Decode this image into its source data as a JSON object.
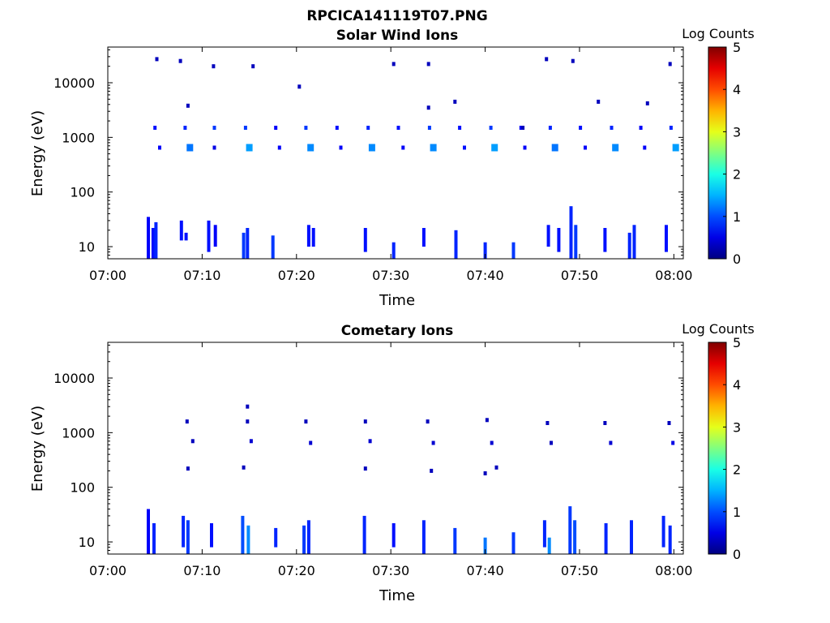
{
  "figure": {
    "title": "RPCICA141119T07.PNG"
  },
  "chart_data": [
    {
      "type": "heatmap",
      "title": "Solar Wind Ions",
      "xlabel": "Time",
      "ylabel": "Energy (eV)",
      "xlim": [
        "07:00",
        "08:01"
      ],
      "ylim": [
        6,
        45000
      ],
      "yscale": "log",
      "xticks": [
        "07:00",
        "07:10",
        "07:20",
        "07:30",
        "07:40",
        "07:50",
        "08:00"
      ],
      "yticks": [
        "10",
        "100",
        "1000",
        "10000"
      ],
      "colorbar": {
        "label": "Log Counts",
        "min": 0,
        "max": 5,
        "ticks": [
          "0",
          "1",
          "2",
          "3",
          "4",
          "5"
        ],
        "colormap": "jet"
      },
      "beam_times_min": [
        5.0,
        8.2,
        11.3,
        14.6,
        17.8,
        21.0,
        24.3,
        27.6,
        30.8,
        34.1,
        37.3,
        40.6,
        43.8,
        46.9,
        50.1,
        53.4,
        56.5,
        59.7
      ],
      "beam_energies_ev": [
        1500,
        650
      ],
      "cells": [
        {
          "t": 5.0,
          "e": 1500,
          "v": 0.7
        },
        {
          "t": 5.5,
          "e": 650,
          "v": 0.6
        },
        {
          "t": 8.2,
          "e": 1500,
          "v": 0.8
        },
        {
          "t": 8.7,
          "e": 650,
          "v": 1.2
        },
        {
          "t": 11.3,
          "e": 1500,
          "v": 0.9
        },
        {
          "t": 11.3,
          "e": 650,
          "v": 0.5
        },
        {
          "t": 14.6,
          "e": 1500,
          "v": 0.9
        },
        {
          "t": 15.0,
          "e": 650,
          "v": 1.4
        },
        {
          "t": 17.8,
          "e": 1500,
          "v": 0.6
        },
        {
          "t": 18.2,
          "e": 650,
          "v": 0.6
        },
        {
          "t": 21.0,
          "e": 1500,
          "v": 0.9
        },
        {
          "t": 21.5,
          "e": 650,
          "v": 1.3
        },
        {
          "t": 24.3,
          "e": 1500,
          "v": 0.7
        },
        {
          "t": 24.7,
          "e": 650,
          "v": 0.6
        },
        {
          "t": 27.6,
          "e": 1500,
          "v": 0.8
        },
        {
          "t": 28.0,
          "e": 650,
          "v": 1.3
        },
        {
          "t": 30.8,
          "e": 1500,
          "v": 0.7
        },
        {
          "t": 31.3,
          "e": 650,
          "v": 0.6
        },
        {
          "t": 34.1,
          "e": 1500,
          "v": 0.9
        },
        {
          "t": 34.5,
          "e": 650,
          "v": 1.3
        },
        {
          "t": 37.3,
          "e": 1500,
          "v": 0.7
        },
        {
          "t": 37.8,
          "e": 650,
          "v": 0.7
        },
        {
          "t": 40.6,
          "e": 1500,
          "v": 0.9
        },
        {
          "t": 41.0,
          "e": 650,
          "v": 1.4
        },
        {
          "t": 43.8,
          "e": 1500,
          "v": 0.6
        },
        {
          "t": 44.2,
          "e": 650,
          "v": 0.6
        },
        {
          "t": 46.9,
          "e": 1500,
          "v": 0.8
        },
        {
          "t": 47.4,
          "e": 650,
          "v": 1.2
        },
        {
          "t": 50.1,
          "e": 1500,
          "v": 0.7
        },
        {
          "t": 50.6,
          "e": 650,
          "v": 0.6
        },
        {
          "t": 53.4,
          "e": 1500,
          "v": 0.8
        },
        {
          "t": 53.8,
          "e": 650,
          "v": 1.3
        },
        {
          "t": 56.5,
          "e": 1500,
          "v": 0.6
        },
        {
          "t": 56.9,
          "e": 650,
          "v": 0.6
        },
        {
          "t": 59.7,
          "e": 1500,
          "v": 0.8
        },
        {
          "t": 60.2,
          "e": 650,
          "v": 1.4
        },
        {
          "t": 5.2,
          "e": 27000,
          "v": 0.3
        },
        {
          "t": 7.7,
          "e": 25000,
          "v": 0.3
        },
        {
          "t": 11.2,
          "e": 20000,
          "v": 0.3
        },
        {
          "t": 15.4,
          "e": 20000,
          "v": 0.3
        },
        {
          "t": 30.3,
          "e": 22000,
          "v": 0.3
        },
        {
          "t": 34.0,
          "e": 22000,
          "v": 0.3
        },
        {
          "t": 46.5,
          "e": 27000,
          "v": 0.3
        },
        {
          "t": 49.3,
          "e": 25000,
          "v": 0.3
        },
        {
          "t": 59.6,
          "e": 22000,
          "v": 0.3
        },
        {
          "t": 20.3,
          "e": 8500,
          "v": 0.3
        },
        {
          "t": 36.8,
          "e": 4500,
          "v": 0.3
        },
        {
          "t": 44.0,
          "e": 1500,
          "v": 0.3
        },
        {
          "t": 8.5,
          "e": 3800,
          "v": 0.3
        },
        {
          "t": 34.0,
          "e": 3500,
          "v": 0.3
        },
        {
          "t": 52.0,
          "e": 4500,
          "v": 0.3
        },
        {
          "t": 57.2,
          "e": 4200,
          "v": 0.3
        }
      ],
      "low_energy_columns": [
        {
          "t": 4.3,
          "emin": 6,
          "emax": 35,
          "v": 0.6
        },
        {
          "t": 4.8,
          "emin": 6,
          "emax": 22,
          "v": 0.7
        },
        {
          "t": 5.1,
          "emin": 6,
          "emax": 28,
          "v": 0.8
        },
        {
          "t": 7.8,
          "emin": 13,
          "emax": 30,
          "v": 0.7
        },
        {
          "t": 8.3,
          "emin": 13,
          "emax": 18,
          "v": 0.7
        },
        {
          "t": 10.7,
          "emin": 8,
          "emax": 30,
          "v": 0.7
        },
        {
          "t": 11.4,
          "emin": 10,
          "emax": 25,
          "v": 0.6
        },
        {
          "t": 14.4,
          "emin": 6,
          "emax": 18,
          "v": 0.9
        },
        {
          "t": 14.8,
          "emin": 6,
          "emax": 22,
          "v": 0.8
        },
        {
          "t": 17.5,
          "emin": 6,
          "emax": 16,
          "v": 0.9
        },
        {
          "t": 21.3,
          "emin": 10,
          "emax": 25,
          "v": 0.7
        },
        {
          "t": 21.8,
          "emin": 10,
          "emax": 22,
          "v": 0.7
        },
        {
          "t": 27.3,
          "emin": 8,
          "emax": 22,
          "v": 0.7
        },
        {
          "t": 30.3,
          "emin": 6,
          "emax": 12,
          "v": 0.8
        },
        {
          "t": 33.5,
          "emin": 10,
          "emax": 22,
          "v": 0.7
        },
        {
          "t": 36.9,
          "emin": 6,
          "emax": 20,
          "v": 0.8
        },
        {
          "t": 40.0,
          "emin": 6,
          "emax": 12,
          "v": 0.8
        },
        {
          "t": 43.0,
          "emin": 6,
          "emax": 12,
          "v": 0.9
        },
        {
          "t": 46.7,
          "emin": 10,
          "emax": 25,
          "v": 0.7
        },
        {
          "t": 47.8,
          "emin": 8,
          "emax": 22,
          "v": 0.7
        },
        {
          "t": 49.1,
          "emin": 6,
          "emax": 55,
          "v": 0.8
        },
        {
          "t": 49.6,
          "emin": 6,
          "emax": 25,
          "v": 0.9
        },
        {
          "t": 52.7,
          "emin": 8,
          "emax": 22,
          "v": 0.7
        },
        {
          "t": 55.3,
          "emin": 6,
          "emax": 18,
          "v": 0.8
        },
        {
          "t": 55.8,
          "emin": 6,
          "emax": 25,
          "v": 0.8
        },
        {
          "t": 59.2,
          "emin": 8,
          "emax": 25,
          "v": 0.7
        }
      ]
    },
    {
      "type": "heatmap",
      "title": "Cometary Ions",
      "xlabel": "Time",
      "ylabel": "Energy (eV)",
      "xlim": [
        "07:00",
        "08:01"
      ],
      "ylim": [
        6,
        45000
      ],
      "yscale": "log",
      "xticks": [
        "07:00",
        "07:10",
        "07:20",
        "07:30",
        "07:40",
        "07:50",
        "08:00"
      ],
      "yticks": [
        "10",
        "100",
        "1000",
        "10000"
      ],
      "colorbar": {
        "label": "Log Counts",
        "min": 0,
        "max": 5,
        "ticks": [
          "0",
          "1",
          "2",
          "3",
          "4",
          "5"
        ],
        "colormap": "jet"
      },
      "cells": [
        {
          "t": 8.4,
          "e": 1600,
          "v": 0.3
        },
        {
          "t": 9.0,
          "e": 700,
          "v": 0.3
        },
        {
          "t": 14.8,
          "e": 1600,
          "v": 0.3
        },
        {
          "t": 15.2,
          "e": 700,
          "v": 0.4
        },
        {
          "t": 14.8,
          "e": 3000,
          "v": 0.3
        },
        {
          "t": 21.0,
          "e": 1600,
          "v": 0.3
        },
        {
          "t": 21.5,
          "e": 650,
          "v": 0.4
        },
        {
          "t": 27.3,
          "e": 1600,
          "v": 0.3
        },
        {
          "t": 27.8,
          "e": 700,
          "v": 0.4
        },
        {
          "t": 33.9,
          "e": 1600,
          "v": 0.3
        },
        {
          "t": 34.5,
          "e": 650,
          "v": 0.4
        },
        {
          "t": 40.2,
          "e": 1700,
          "v": 0.3
        },
        {
          "t": 40.7,
          "e": 650,
          "v": 0.4
        },
        {
          "t": 46.6,
          "e": 1500,
          "v": 0.3
        },
        {
          "t": 47.0,
          "e": 650,
          "v": 0.3
        },
        {
          "t": 52.7,
          "e": 1500,
          "v": 0.3
        },
        {
          "t": 53.3,
          "e": 650,
          "v": 0.4
        },
        {
          "t": 59.5,
          "e": 1500,
          "v": 0.3
        },
        {
          "t": 59.9,
          "e": 650,
          "v": 0.5
        },
        {
          "t": 8.5,
          "e": 220,
          "v": 0.3
        },
        {
          "t": 14.4,
          "e": 230,
          "v": 0.3
        },
        {
          "t": 27.3,
          "e": 220,
          "v": 0.3
        },
        {
          "t": 34.3,
          "e": 200,
          "v": 0.3
        },
        {
          "t": 40.0,
          "e": 180,
          "v": 0.3
        },
        {
          "t": 41.2,
          "e": 230,
          "v": 0.3
        }
      ],
      "low_energy_columns": [
        {
          "t": 4.3,
          "emin": 6,
          "emax": 40,
          "v": 0.6
        },
        {
          "t": 4.9,
          "emin": 6,
          "emax": 22,
          "v": 0.8
        },
        {
          "t": 8.0,
          "emin": 8,
          "emax": 30,
          "v": 0.8
        },
        {
          "t": 8.5,
          "emin": 6,
          "emax": 25,
          "v": 0.9
        },
        {
          "t": 11.0,
          "emin": 8,
          "emax": 22,
          "v": 0.7
        },
        {
          "t": 14.3,
          "emin": 6,
          "emax": 30,
          "v": 1.0
        },
        {
          "t": 14.9,
          "emin": 6,
          "emax": 20,
          "v": 1.3
        },
        {
          "t": 17.8,
          "emin": 8,
          "emax": 18,
          "v": 0.8
        },
        {
          "t": 20.8,
          "emin": 6,
          "emax": 20,
          "v": 0.9
        },
        {
          "t": 21.3,
          "emin": 6,
          "emax": 25,
          "v": 0.8
        },
        {
          "t": 27.2,
          "emin": 6,
          "emax": 30,
          "v": 0.8
        },
        {
          "t": 30.3,
          "emin": 8,
          "emax": 22,
          "v": 0.7
        },
        {
          "t": 33.5,
          "emin": 6,
          "emax": 25,
          "v": 0.8
        },
        {
          "t": 36.8,
          "emin": 6,
          "emax": 18,
          "v": 0.9
        },
        {
          "t": 40.0,
          "emin": 6,
          "emax": 12,
          "v": 1.2
        },
        {
          "t": 43.0,
          "emin": 6,
          "emax": 15,
          "v": 0.9
        },
        {
          "t": 46.3,
          "emin": 8,
          "emax": 25,
          "v": 0.8
        },
        {
          "t": 46.8,
          "emin": 6,
          "emax": 12,
          "v": 1.3
        },
        {
          "t": 49.0,
          "emin": 6,
          "emax": 45,
          "v": 0.9
        },
        {
          "t": 49.5,
          "emin": 6,
          "emax": 25,
          "v": 1.0
        },
        {
          "t": 52.8,
          "emin": 6,
          "emax": 22,
          "v": 0.8
        },
        {
          "t": 55.5,
          "emin": 6,
          "emax": 25,
          "v": 0.8
        },
        {
          "t": 58.9,
          "emin": 8,
          "emax": 30,
          "v": 0.8
        },
        {
          "t": 59.6,
          "emin": 6,
          "emax": 20,
          "v": 0.8
        }
      ]
    }
  ]
}
